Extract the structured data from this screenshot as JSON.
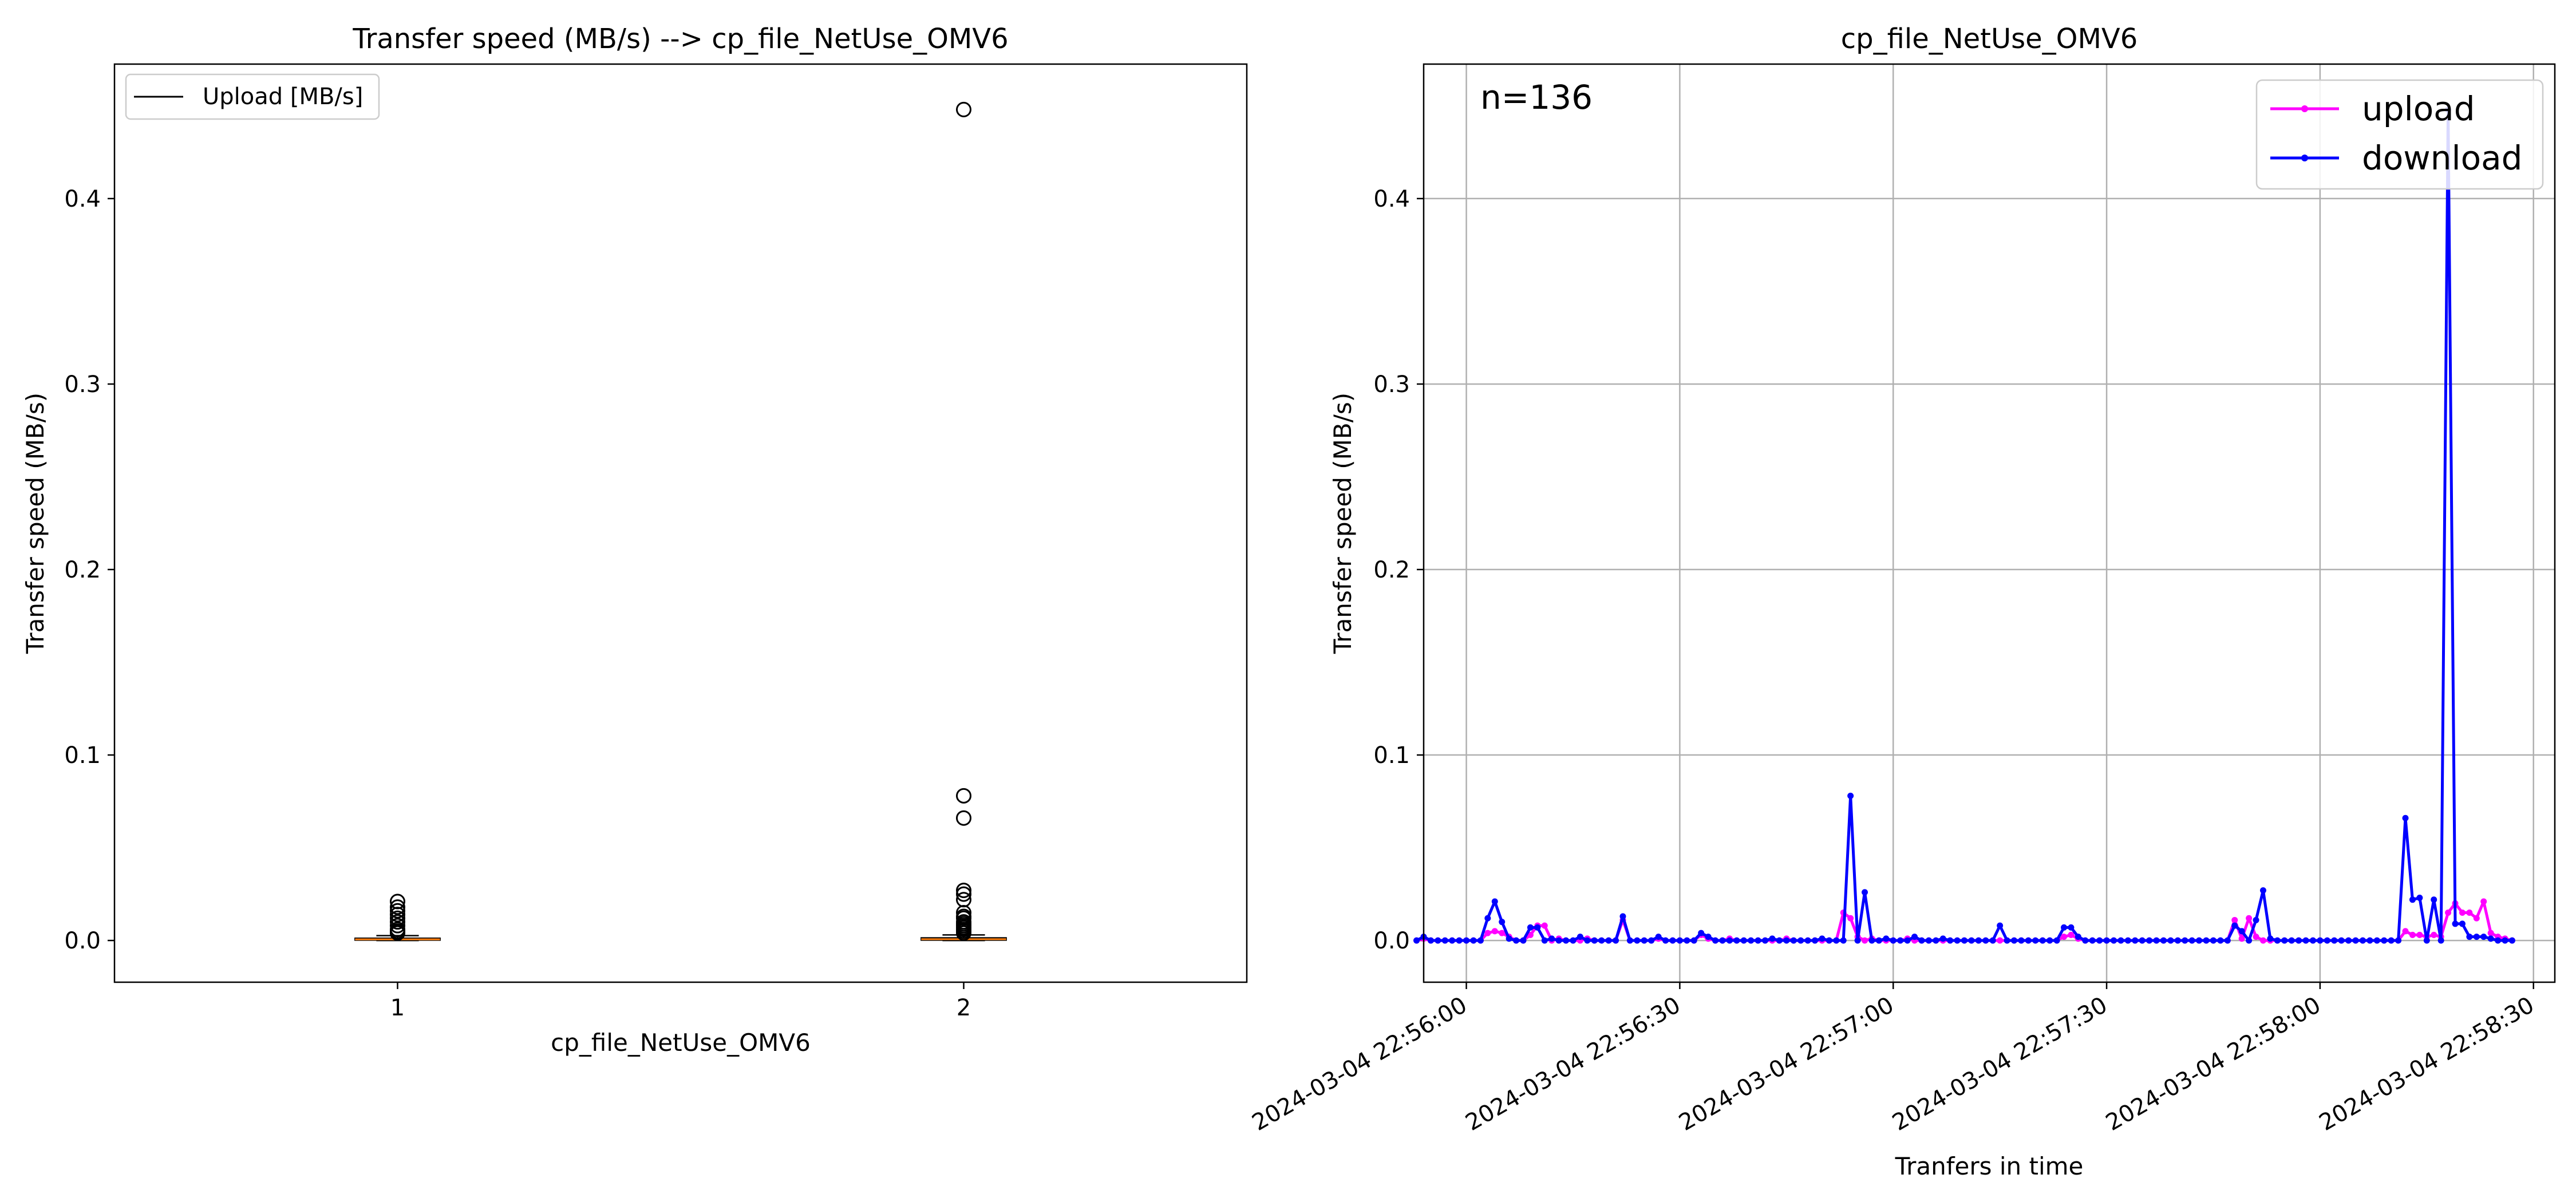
{
  "chart_data": [
    {
      "type": "box",
      "title": "Transfer speed (MB/s) --> cp_file_NetUse_OMV6",
      "xlabel": "cp_file_NetUse_OMV6",
      "ylabel": "Transfer speed (MB/s)",
      "categories": [
        "1",
        "2"
      ],
      "xlim": [
        0.5,
        2.5
      ],
      "ylim": [
        -0.0225,
        0.4725
      ],
      "yticks": [
        0.0,
        0.1,
        0.2,
        0.3,
        0.4
      ],
      "ytick_labels": [
        "0.0",
        "0.1",
        "0.2",
        "0.3",
        "0.4"
      ],
      "grid": false,
      "legend": {
        "placement": "upper-left",
        "entries": [
          "Upload [MB/s]"
        ]
      },
      "boxes": [
        {
          "category": "1",
          "q1": 0.0002,
          "median": 0.0006,
          "q3": 0.0012,
          "whisker_low": 0.0,
          "whisker_high": 0.0026,
          "outliers": [
            0.021,
            0.018,
            0.016,
            0.014,
            0.012,
            0.01,
            0.008,
            0.006,
            0.005,
            0.0045,
            0.004
          ]
        },
        {
          "category": "2",
          "q1": 0.0002,
          "median": 0.0007,
          "q3": 0.0014,
          "whisker_low": 0.0,
          "whisker_high": 0.003,
          "outliers": [
            0.448,
            0.078,
            0.066,
            0.027,
            0.025,
            0.022,
            0.015,
            0.013,
            0.012,
            0.01,
            0.009,
            0.008,
            0.007,
            0.006,
            0.005,
            0.004
          ]
        }
      ],
      "colors": {
        "box": "#000000",
        "median": "#ff7f0e"
      }
    },
    {
      "type": "line",
      "title": "cp_file_NetUse_OMV6",
      "xlabel": "Tranfers in time",
      "ylabel": "Transfer speed (MB/s)",
      "annotation": "n=136",
      "grid": true,
      "xlim": [
        "2024-03-04 22:55:54",
        "2024-03-04 22:58:33"
      ],
      "ylim": [
        -0.0225,
        0.4725
      ],
      "xticks": [
        "2024-03-04 22:56:00",
        "2024-03-04 22:56:30",
        "2024-03-04 22:57:00",
        "2024-03-04 22:57:30",
        "2024-03-04 22:58:00",
        "2024-03-04 22:58:30"
      ],
      "yticks": [
        0.0,
        0.1,
        0.2,
        0.3,
        0.4
      ],
      "ytick_labels": [
        "0.0",
        "0.1",
        "0.2",
        "0.3",
        "0.4"
      ],
      "legend": {
        "placement": "top-right"
      },
      "x": [
        "2024-03-04 22:55:53",
        "2024-03-04 22:55:54",
        "2024-03-04 22:55:55",
        "2024-03-04 22:55:56",
        "2024-03-04 22:55:57",
        "2024-03-04 22:55:58",
        "2024-03-04 22:55:59",
        "2024-03-04 22:56:00",
        "2024-03-04 22:56:01",
        "2024-03-04 22:56:02",
        "2024-03-04 22:56:03",
        "2024-03-04 22:56:04",
        "2024-03-04 22:56:05",
        "2024-03-04 22:56:06",
        "2024-03-04 22:56:07",
        "2024-03-04 22:56:08",
        "2024-03-04 22:56:09",
        "2024-03-04 22:56:10",
        "2024-03-04 22:56:11",
        "2024-03-04 22:56:12",
        "2024-03-04 22:56:13",
        "2024-03-04 22:56:14",
        "2024-03-04 22:56:15",
        "2024-03-04 22:56:16",
        "2024-03-04 22:56:17",
        "2024-03-04 22:56:18",
        "2024-03-04 22:56:19",
        "2024-03-04 22:56:20",
        "2024-03-04 22:56:21",
        "2024-03-04 22:56:22",
        "2024-03-04 22:56:23",
        "2024-03-04 22:56:24",
        "2024-03-04 22:56:25",
        "2024-03-04 22:56:26",
        "2024-03-04 22:56:27",
        "2024-03-04 22:56:28",
        "2024-03-04 22:56:29",
        "2024-03-04 22:56:30",
        "2024-03-04 22:56:31",
        "2024-03-04 22:56:32",
        "2024-03-04 22:56:33",
        "2024-03-04 22:56:34",
        "2024-03-04 22:56:35",
        "2024-03-04 22:56:36",
        "2024-03-04 22:56:37",
        "2024-03-04 22:56:38",
        "2024-03-04 22:56:39",
        "2024-03-04 22:56:40",
        "2024-03-04 22:56:41",
        "2024-03-04 22:56:42",
        "2024-03-04 22:56:43",
        "2024-03-04 22:56:44",
        "2024-03-04 22:56:45",
        "2024-03-04 22:56:46",
        "2024-03-04 22:56:47",
        "2024-03-04 22:56:48",
        "2024-03-04 22:56:49",
        "2024-03-04 22:56:50",
        "2024-03-04 22:56:51",
        "2024-03-04 22:56:52",
        "2024-03-04 22:56:53",
        "2024-03-04 22:56:54",
        "2024-03-04 22:56:55",
        "2024-03-04 22:56:56",
        "2024-03-04 22:56:57",
        "2024-03-04 22:56:58",
        "2024-03-04 22:56:59",
        "2024-03-04 22:57:00",
        "2024-03-04 22:57:01",
        "2024-03-04 22:57:02",
        "2024-03-04 22:57:03",
        "2024-03-04 22:57:04",
        "2024-03-04 22:57:05",
        "2024-03-04 22:57:06",
        "2024-03-04 22:57:07",
        "2024-03-04 22:57:08",
        "2024-03-04 22:57:09",
        "2024-03-04 22:57:10",
        "2024-03-04 22:57:11",
        "2024-03-04 22:57:12",
        "2024-03-04 22:57:13",
        "2024-03-04 22:57:14",
        "2024-03-04 22:57:15",
        "2024-03-04 22:57:16",
        "2024-03-04 22:57:17",
        "2024-03-04 22:57:18",
        "2024-03-04 22:57:19",
        "2024-03-04 22:57:20",
        "2024-03-04 22:57:21",
        "2024-03-04 22:57:22",
        "2024-03-04 22:57:23",
        "2024-03-04 22:57:24",
        "2024-03-04 22:57:25",
        "2024-03-04 22:57:26",
        "2024-03-04 22:57:27",
        "2024-03-04 22:57:28",
        "2024-03-04 22:57:29",
        "2024-03-04 22:57:30",
        "2024-03-04 22:57:31",
        "2024-03-04 22:57:32",
        "2024-03-04 22:57:33",
        "2024-03-04 22:57:34",
        "2024-03-04 22:57:35",
        "2024-03-04 22:57:36",
        "2024-03-04 22:57:37",
        "2024-03-04 22:57:38",
        "2024-03-04 22:57:39",
        "2024-03-04 22:57:40",
        "2024-03-04 22:57:41",
        "2024-03-04 22:57:42",
        "2024-03-04 22:57:43",
        "2024-03-04 22:57:44",
        "2024-03-04 22:57:45",
        "2024-03-04 22:57:46",
        "2024-03-04 22:57:47",
        "2024-03-04 22:57:48",
        "2024-03-04 22:57:49",
        "2024-03-04 22:57:50",
        "2024-03-04 22:57:51",
        "2024-03-04 22:57:52",
        "2024-03-04 22:57:53",
        "2024-03-04 22:57:54",
        "2024-03-04 22:57:55",
        "2024-03-04 22:57:56",
        "2024-03-04 22:57:57",
        "2024-03-04 22:57:58",
        "2024-03-04 22:57:59",
        "2024-03-04 22:58:00",
        "2024-03-04 22:58:01",
        "2024-03-04 22:58:02",
        "2024-03-04 22:58:03",
        "2024-03-04 22:58:04",
        "2024-03-04 22:58:05",
        "2024-03-04 22:58:06",
        "2024-03-04 22:58:07",
        "2024-03-04 22:58:08",
        "2024-03-04 22:58:09",
        "2024-03-04 22:58:10",
        "2024-03-04 22:58:11",
        "2024-03-04 22:58:12",
        "2024-03-04 22:58:13",
        "2024-03-04 22:58:14",
        "2024-03-04 22:58:15",
        "2024-03-04 22:58:16",
        "2024-03-04 22:58:17",
        "2024-03-04 22:58:18",
        "2024-03-04 22:58:19",
        "2024-03-04 22:58:20",
        "2024-03-04 22:58:21",
        "2024-03-04 22:58:22",
        "2024-03-04 22:58:23",
        "2024-03-04 22:58:24",
        "2024-03-04 22:58:25",
        "2024-03-04 22:58:26",
        "2024-03-04 22:58:27"
      ],
      "series": [
        {
          "name": "upload",
          "color": "#ff00ff",
          "values": [
            0.0,
            0.001,
            0.0,
            0.0,
            0.0,
            0.0,
            0.0,
            0.0,
            0.0,
            0.0,
            0.004,
            0.005,
            0.004,
            0.002,
            0.0,
            0.0,
            0.003,
            0.008,
            0.008,
            0.0,
            0.001,
            0.0,
            0.0,
            0.0,
            0.001,
            0.0,
            0.0,
            0.0,
            0.0,
            0.011,
            0.0,
            0.0,
            0.0,
            0.0,
            0.001,
            0.0,
            0.0,
            0.0,
            0.0,
            0.0,
            0.003,
            0.001,
            0.0,
            0.0,
            0.001,
            0.0,
            0.0,
            0.0,
            0.0,
            0.0,
            0.0,
            0.0,
            0.001,
            0.0,
            0.0,
            0.0,
            0.0,
            0.0,
            0.0,
            0.0,
            0.015,
            0.012,
            0.002,
            0.0,
            0.001,
            0.0,
            0.0,
            0.0,
            0.0,
            0.001,
            0.0,
            0.0,
            0.0,
            0.0,
            0.0,
            0.0,
            0.0,
            0.0,
            0.0,
            0.0,
            0.0,
            0.0,
            0.0,
            0.0,
            0.0,
            0.0,
            0.0,
            0.0,
            0.0,
            0.0,
            0.0,
            0.002,
            0.003,
            0.001,
            0.0,
            0.0,
            0.0,
            0.0,
            0.0,
            0.0,
            0.0,
            0.0,
            0.0,
            0.0,
            0.0,
            0.0,
            0.0,
            0.0,
            0.0,
            0.0,
            0.0,
            0.0,
            0.0,
            0.0,
            0.0,
            0.011,
            0.001,
            0.012,
            0.002,
            0.0,
            0.0,
            0.0,
            0.0,
            0.0,
            0.0,
            0.0,
            0.0,
            0.0,
            0.0,
            0.0,
            0.0,
            0.0,
            0.0,
            0.0,
            0.0,
            0.0,
            0.0,
            0.0,
            0.0,
            0.005,
            0.003,
            0.003,
            0.002,
            0.003,
            0.002,
            0.015,
            0.02,
            0.015,
            0.015,
            0.012,
            0.021,
            0.004,
            0.002,
            0.001,
            0.0
          ]
        },
        {
          "name": "download",
          "color": "#0000ff",
          "values": [
            0.0,
            0.002,
            0.0,
            0.0,
            0.0,
            0.0,
            0.0,
            0.0,
            0.0,
            0.0,
            0.012,
            0.021,
            0.01,
            0.001,
            0.0,
            0.0,
            0.007,
            0.007,
            0.0,
            0.001,
            0.0,
            0.0,
            0.0,
            0.002,
            0.0,
            0.0,
            0.0,
            0.0,
            0.0,
            0.013,
            0.0,
            0.0,
            0.0,
            0.0,
            0.002,
            0.0,
            0.0,
            0.0,
            0.0,
            0.0,
            0.004,
            0.002,
            0.0,
            0.0,
            0.0,
            0.0,
            0.0,
            0.0,
            0.0,
            0.0,
            0.001,
            0.0,
            0.0,
            0.0,
            0.0,
            0.0,
            0.0,
            0.001,
            0.0,
            0.0,
            0.0,
            0.078,
            0.0,
            0.026,
            0.0,
            0.0,
            0.001,
            0.0,
            0.0,
            0.0,
            0.002,
            0.0,
            0.0,
            0.0,
            0.001,
            0.0,
            0.0,
            0.0,
            0.0,
            0.0,
            0.0,
            0.0,
            0.008,
            0.0,
            0.0,
            0.0,
            0.0,
            0.0,
            0.0,
            0.0,
            0.0,
            0.007,
            0.007,
            0.002,
            0.0,
            0.0,
            0.0,
            0.0,
            0.0,
            0.0,
            0.0,
            0.0,
            0.0,
            0.0,
            0.0,
            0.0,
            0.0,
            0.0,
            0.0,
            0.0,
            0.0,
            0.0,
            0.0,
            0.0,
            0.0,
            0.008,
            0.005,
            0.0,
            0.011,
            0.027,
            0.001,
            0.0,
            0.0,
            0.0,
            0.0,
            0.0,
            0.0,
            0.0,
            0.0,
            0.0,
            0.0,
            0.0,
            0.0,
            0.0,
            0.0,
            0.0,
            0.0,
            0.0,
            0.0,
            0.066,
            0.022,
            0.023,
            0.0,
            0.022,
            0.0,
            0.448,
            0.009,
            0.009,
            0.002,
            0.002,
            0.002,
            0.001,
            0.0,
            0.0,
            0.0
          ]
        }
      ]
    }
  ]
}
